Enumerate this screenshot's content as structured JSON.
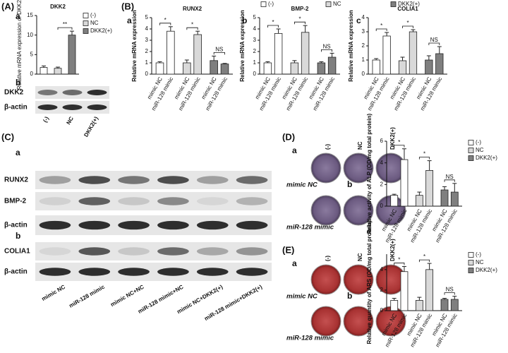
{
  "figure": {
    "A": {
      "label": "(A)",
      "a": "a",
      "b": "b",
      "blot_rows": [
        "DKK2",
        "β-actin"
      ],
      "lanes": [
        "(-)",
        "NC",
        "DKK2(+)"
      ]
    },
    "B": {
      "label": "(B)",
      "subs": [
        "a",
        "b",
        "c"
      ]
    },
    "C": {
      "label": "(C)",
      "subs": [
        "a",
        "b"
      ],
      "blot_rows": [
        "RUNX2",
        "BMP-2",
        "β-actin",
        "COLIA1",
        "β-actin"
      ],
      "lanes": [
        "mimic NC",
        "miR-128 mimic",
        "mimic NC+NC",
        "miR-128 mimic+NC",
        "mimic NC+DKK2(+)",
        "miR-128 mimic+DKK2(+)"
      ]
    },
    "D": {
      "label": "(D)",
      "a": "a",
      "b": "b",
      "columns": [
        "(-)",
        "NC",
        "DKK2(+)"
      ],
      "rows": [
        "mimic NC",
        "miR-128 mimic"
      ]
    },
    "E": {
      "label": "(E)",
      "a": "a",
      "b": "b",
      "columns": [
        "(-)",
        "NC",
        "DKK2(+)"
      ],
      "rows": [
        "mimic NC",
        "miR-128 mimic"
      ]
    }
  },
  "chart_data": [
    {
      "type": "bar",
      "title": "DKK2",
      "ylabel": "Relative mRNA expression of DKK2",
      "ylim": [
        0,
        15
      ],
      "yticks": [
        0,
        5,
        10,
        15
      ],
      "legend": "right",
      "series": [
        {
          "name": "(-)",
          "color": "#ffffff",
          "values": [
            1.7
          ],
          "errors": [
            0.4
          ]
        },
        {
          "name": "NC",
          "color": "#d9d9d9",
          "values": [
            1.5
          ],
          "errors": [
            0.3
          ]
        },
        {
          "name": "DKK2(+)",
          "color": "#7f7f7f",
          "values": [
            10
          ],
          "errors": [
            1.0
          ]
        }
      ],
      "annotations": [
        "**"
      ]
    },
    {
      "type": "bar",
      "title": "RUNX2",
      "ylabel": "Relative mRNA expression",
      "ylim": [
        0,
        5
      ],
      "yticks": [
        0,
        1,
        2,
        3,
        4,
        5
      ],
      "legend": "top",
      "categories": [
        "mimic NC",
        "miR-128 mimic"
      ],
      "series": [
        {
          "name": "(-)",
          "color": "#ffffff",
          "values": [
            1,
            3.8
          ],
          "errors": [
            0.1,
            0.4
          ]
        },
        {
          "name": "NC",
          "color": "#d9d9d9",
          "values": [
            1,
            3.5
          ],
          "errors": [
            0.25,
            0.3
          ]
        },
        {
          "name": "DKK2(+)",
          "color": "#7f7f7f",
          "values": [
            1.2,
            0.9
          ],
          "errors": [
            0.4,
            0.05
          ]
        }
      ],
      "annotations": [
        "*",
        "*",
        "NS"
      ]
    },
    {
      "type": "bar",
      "title": "BMP-2",
      "ylabel": "Relative mRNA expression",
      "ylim": [
        0,
        5
      ],
      "yticks": [
        0,
        1,
        2,
        3,
        4,
        5
      ],
      "categories": [
        "mimic NC",
        "miR-128 mimic"
      ],
      "series": [
        {
          "name": "(-)",
          "color": "#ffffff",
          "values": [
            1.0,
            3.6
          ],
          "errors": [
            0.1,
            0.4
          ]
        },
        {
          "name": "NC",
          "color": "#d9d9d9",
          "values": [
            1.0,
            3.7
          ],
          "errors": [
            0.2,
            0.6
          ]
        },
        {
          "name": "DKK2(+)",
          "color": "#7f7f7f",
          "values": [
            1.0,
            1.5
          ],
          "errors": [
            0.1,
            0.35
          ]
        }
      ],
      "annotations": [
        "*",
        "*",
        "NS"
      ]
    },
    {
      "type": "bar",
      "title": "COLIA1",
      "ylabel": "Relative mRNA expression",
      "ylim": [
        0,
        4
      ],
      "yticks": [
        0,
        1,
        2,
        3,
        4
      ],
      "categories": [
        "mimic NC",
        "miR-128 mimic"
      ],
      "series": [
        {
          "name": "(-)",
          "color": "#ffffff",
          "values": [
            1.0,
            2.7
          ],
          "errors": [
            0.1,
            0.25
          ]
        },
        {
          "name": "NC",
          "color": "#d9d9d9",
          "values": [
            0.95,
            3.0
          ],
          "errors": [
            0.25,
            0.15
          ]
        },
        {
          "name": "DKK2(+)",
          "color": "#7f7f7f",
          "values": [
            1.0,
            1.45
          ],
          "errors": [
            0.3,
            0.5
          ]
        }
      ],
      "annotations": [
        "*",
        "*",
        "NS"
      ]
    },
    {
      "type": "bar",
      "ylabel": "Relative activity of ALP (OD/mg total protein)",
      "ylim": [
        0,
        6
      ],
      "yticks": [
        0,
        2,
        4,
        6
      ],
      "legend": "right",
      "categories": [
        "mimic NC",
        "miR-128 mimic"
      ],
      "series": [
        {
          "name": "(-)",
          "color": "#ffffff",
          "values": [
            1.0,
            4.3
          ],
          "errors": [
            0.1,
            1.0
          ]
        },
        {
          "name": "NC",
          "color": "#d9d9d9",
          "values": [
            1.0,
            3.3
          ],
          "errors": [
            0.3,
            0.9
          ]
        },
        {
          "name": "DKK2(+)",
          "color": "#7f7f7f",
          "values": [
            1.5,
            1.3
          ],
          "errors": [
            0.3,
            0.8
          ]
        }
      ],
      "annotations": [
        "*",
        "*",
        "NS"
      ]
    },
    {
      "type": "bar",
      "ylabel": "Relative quantity of ARS (OD/mg total protein)",
      "ylim": [
        0,
        5.5
      ],
      "yticks": [
        0,
        2,
        4
      ],
      "legend": "right",
      "categories": [
        "mimic NC",
        "miR-128 mimic"
      ],
      "series": [
        {
          "name": "(-)",
          "color": "#ffffff",
          "values": [
            1.0,
            3.8
          ],
          "errors": [
            0.2,
            0.5
          ]
        },
        {
          "name": "NC",
          "color": "#d9d9d9",
          "values": [
            1.0,
            4.0
          ],
          "errors": [
            0.3,
            0.6
          ]
        },
        {
          "name": "DKK2(+)",
          "color": "#7f7f7f",
          "values": [
            1.1,
            1.1
          ],
          "errors": [
            0.1,
            0.3
          ]
        }
      ],
      "annotations": [
        "*",
        "*",
        "NS"
      ]
    }
  ]
}
